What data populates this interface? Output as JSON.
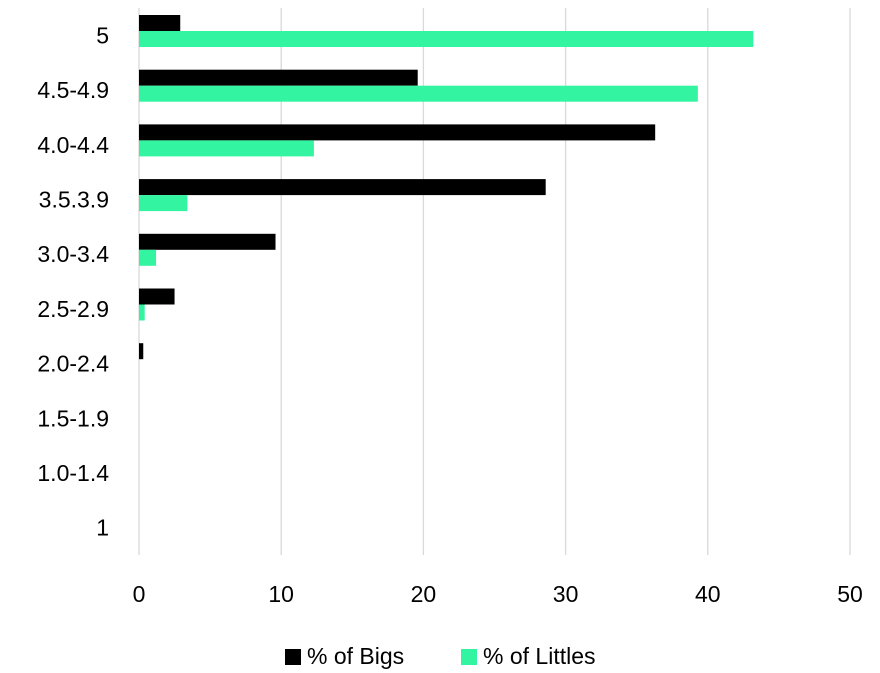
{
  "chart_data": {
    "type": "bar",
    "orientation": "horizontal",
    "title": "",
    "xlabel": "",
    "ylabel": "",
    "categories": [
      "5",
      "4.5-4.9",
      "4.0-4.4",
      "3.5.3.9",
      "3.0-3.4",
      "2.5-2.9",
      "2.0-2.4",
      "1.5-1.9",
      "1.0-1.4",
      "1"
    ],
    "series": [
      {
        "name": "% of Bigs",
        "color": "#000000",
        "values": [
          2.9,
          19.6,
          36.3,
          28.6,
          9.6,
          2.5,
          0.3,
          0,
          0,
          0
        ]
      },
      {
        "name": "% of Littles",
        "color": "#33F5A1",
        "values": [
          43.2,
          39.3,
          12.3,
          3.4,
          1.2,
          0.4,
          0,
          0,
          0,
          0
        ]
      }
    ],
    "xlim": [
      0,
      50
    ],
    "xticks": [
      "0",
      "10",
      "20",
      "30",
      "40",
      "50"
    ],
    "grid": "vertical",
    "legend": "bottom"
  }
}
